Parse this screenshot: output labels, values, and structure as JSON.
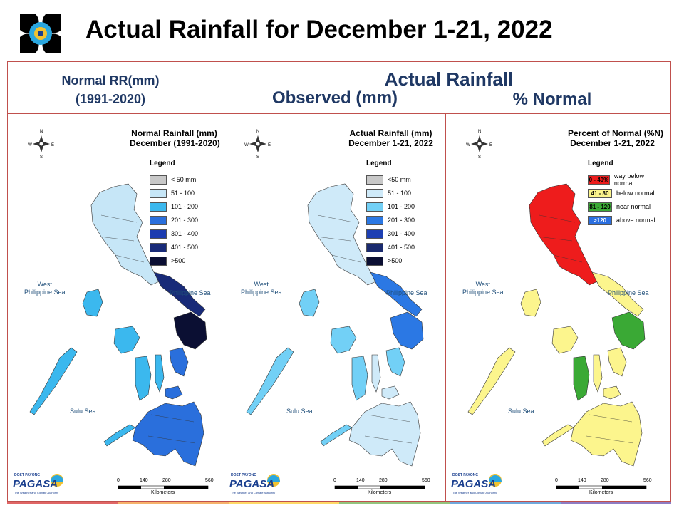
{
  "header": {
    "title": "Actual Rainfall for December 1-21, 2022"
  },
  "columns": {
    "normal_header_line1": "Normal RR(mm)",
    "normal_header_line2": "(1991-2020)",
    "actual_header": "Actual Rainfall",
    "observed_header": "Observed (mm)",
    "percent_header": "% Normal"
  },
  "panels": [
    {
      "title_line1": "Normal Rainfall (mm)",
      "title_line2": "December (1991-2020)",
      "legend_title": "Legend",
      "legend": [
        {
          "label": "< 50 mm",
          "color": "#c8c8c8"
        },
        {
          "label": "51 - 100",
          "color": "#c6e6f7"
        },
        {
          "label": "101 - 200",
          "color": "#3bb8ee"
        },
        {
          "label": "201 - 300",
          "color": "#2a6fdc"
        },
        {
          "label": "301 - 400",
          "color": "#1c3cb0"
        },
        {
          "label": "401 - 500",
          "color": "#182a78"
        },
        {
          "label": ">500",
          "color": "#0b0f33"
        }
      ],
      "sea_west": "West\nPhilippine Sea",
      "sea_east": "Philippine Sea",
      "sea_south": "Sulu Sea"
    },
    {
      "title_line1": "Actual Rainfall (mm)",
      "title_line2": "December 1-21, 2022",
      "legend_title": "Legend",
      "legend": [
        {
          "label": "<50 mm",
          "color": "#c8c8c8"
        },
        {
          "label": "51 - 100",
          "color": "#cfeaf9"
        },
        {
          "label": "101 - 200",
          "color": "#72d0f6"
        },
        {
          "label": "201 - 300",
          "color": "#2b78e4"
        },
        {
          "label": "301 - 400",
          "color": "#1d3fb3"
        },
        {
          "label": "401 - 500",
          "color": "#1a2a6e"
        },
        {
          "label": ">500",
          "color": "#0b0f33"
        }
      ],
      "sea_west": "West\nPhilippine Sea",
      "sea_east": "Philippine Sea",
      "sea_south": "Sulu Sea"
    },
    {
      "title_line1": "Percent of Normal (%N)",
      "title_line2": "December 1-21, 2022",
      "legend_title": "Legend",
      "legend": [
        {
          "swatch": "0 - 40%",
          "label": "way below normal",
          "color": "#ee1c1c"
        },
        {
          "swatch": "41 - 80",
          "label": "below normal",
          "color": "#fcf58d"
        },
        {
          "swatch": "81 - 120",
          "label": "near normal",
          "color": "#3aa935"
        },
        {
          "swatch": ">120",
          "label": "above normal",
          "color": "#2b6fe0"
        }
      ],
      "sea_west": "West\nPhilippine Sea",
      "sea_east": "Philippine Sea",
      "sea_south": "Sulu Sea"
    }
  ],
  "map_common": {
    "compass_n": "N",
    "compass_s": "S",
    "compass_e": "E",
    "compass_w": "W",
    "scale_ticks": [
      "0",
      "140",
      "280",
      "560"
    ],
    "scale_unit": "Kilometers",
    "pagasa_text": "PAGASA",
    "pagasa_small": "DOST PAYONG",
    "pagasa_tag": "The Weather and Climate Authority"
  },
  "colors": {
    "border": "#c0504d",
    "header_text": "#1f3864",
    "bottom_bar": [
      "#e06666",
      "#f6b26b",
      "#ffd966",
      "#93c47d",
      "#6fa8dc",
      "#8e7cc3"
    ]
  }
}
